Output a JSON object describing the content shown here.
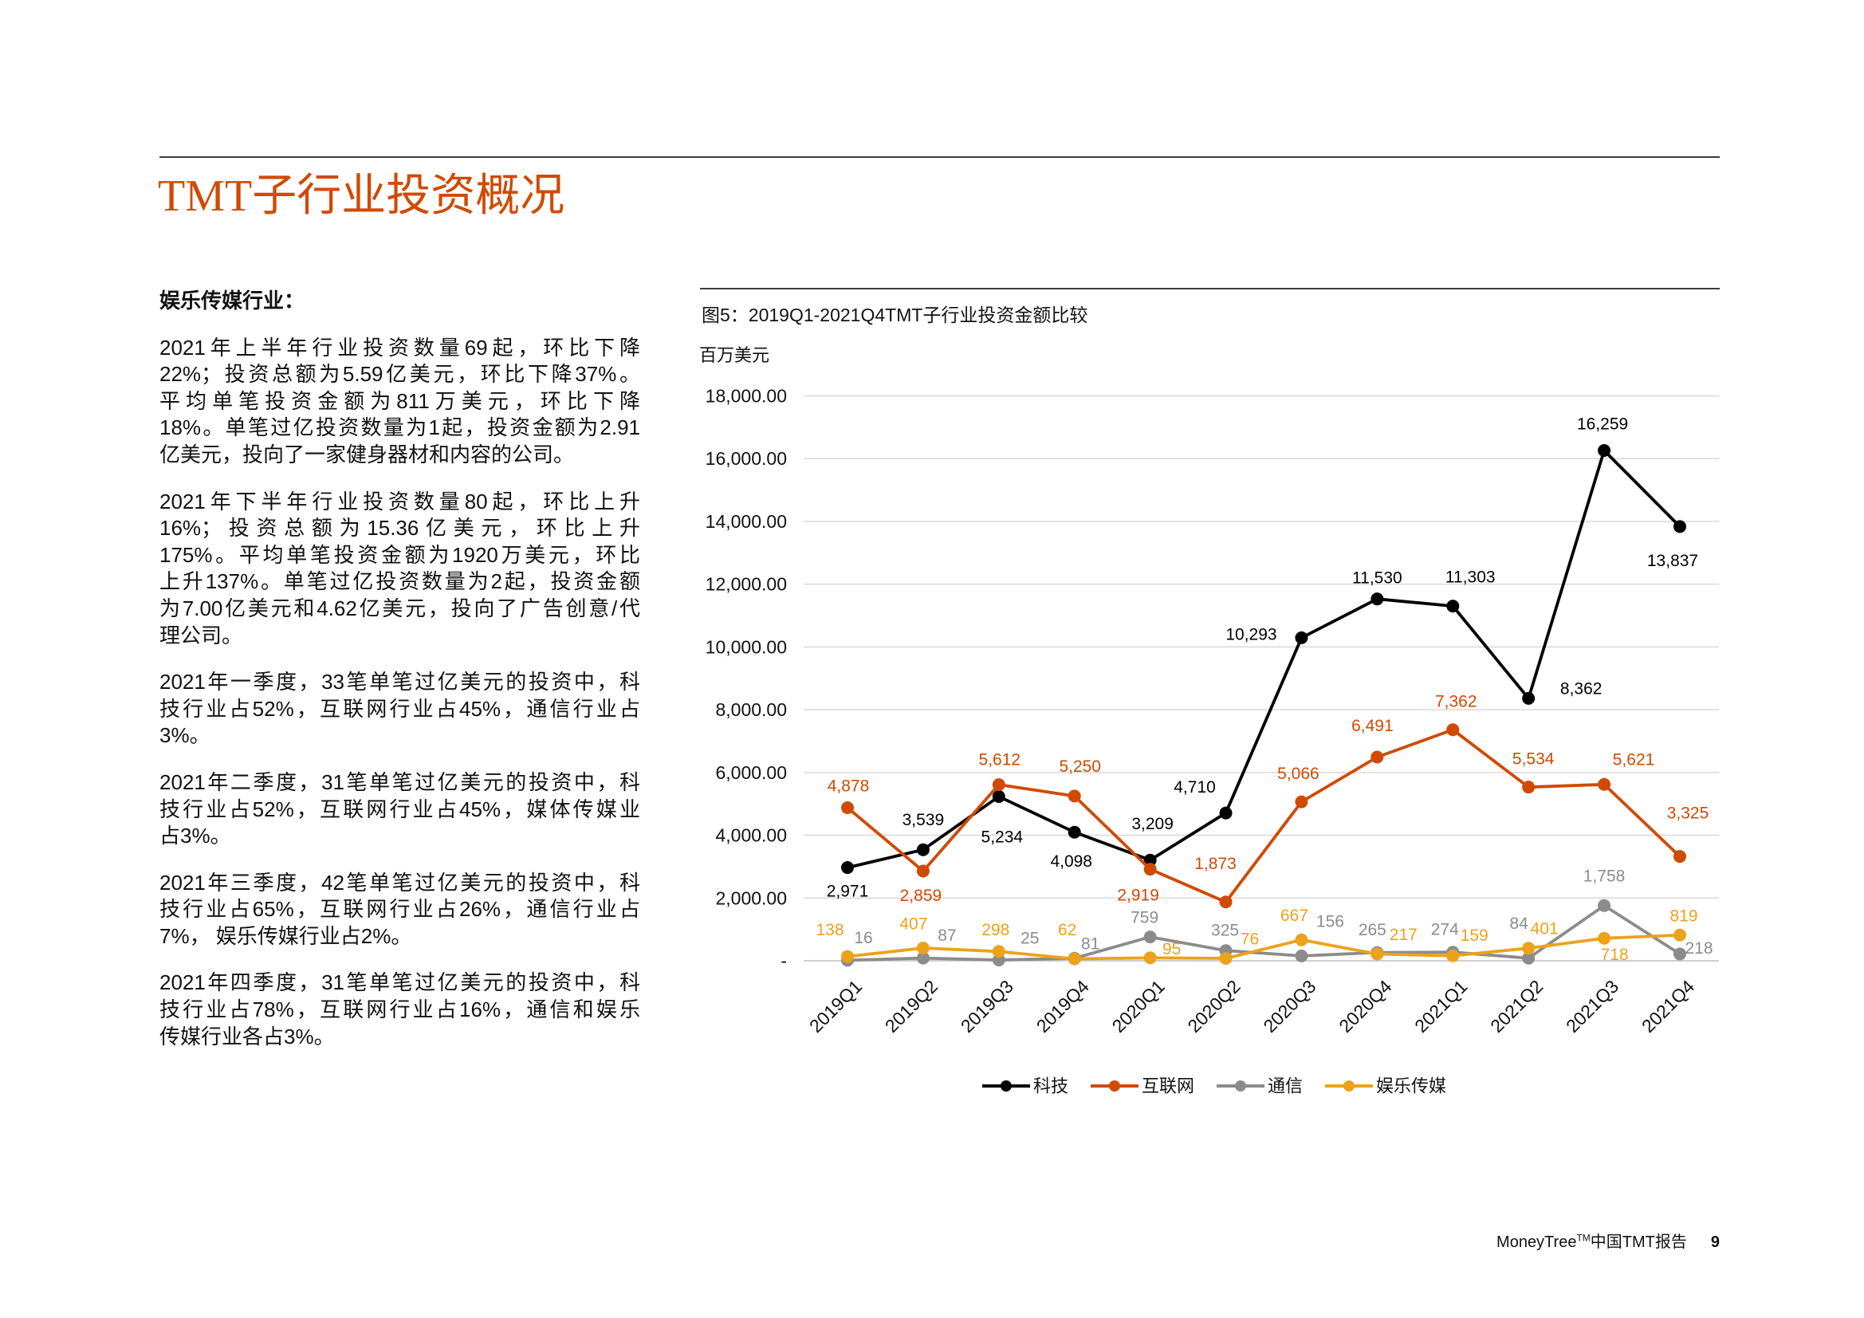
{
  "theme": {
    "accent": "#d04a02"
  },
  "header": {
    "title": "TMT子行业投资概况"
  },
  "body": {
    "heading": "娱乐传媒行业：",
    "paragraphs": [
      [
        "2021年上半年行业投资数量69起，环比下降",
        "22%；投资总额为5.59亿美元，环比下降37%。",
        "平均单笔投资金额为811万美元，环比下降",
        "18%。单笔过亿投资数量为1起，投资金额为2.91",
        "亿美元，投向了一家健身器材和内容的公司。"
      ],
      [
        "2021年下半年行业投资数量80起，环比上升",
        "16%；投资总额为15.36亿美元，环比上升",
        "175%。平均单笔投资金额为1920万美元，环比",
        "上升137%。单笔过亿投资数量为2起，投资金额",
        "为7.00亿美元和4.62亿美元，投向了广告创意/代",
        "理公司。"
      ],
      [
        "2021年一季度，33笔单笔过亿美元的投资中，科",
        "技行业占52%，互联网行业占45%，通信行业占",
        "3%。"
      ],
      [
        "2021年二季度，31笔单笔过亿美元的投资中，科",
        "技行业占52%，互联网行业占45%，媒体传媒业",
        "占3%。"
      ],
      [
        "2021年三季度，42笔单笔过亿美元的投资中，科",
        "技行业占65%，互联网行业占26%，通信行业占",
        "7%， 娱乐传媒行业占2%。"
      ],
      [
        "2021年四季度，31笔单笔过亿美元的投资中，科",
        "技行业占78%，互联网行业占16%，通信和娱乐",
        "传媒行业各占3%。"
      ]
    ]
  },
  "chart_data": {
    "type": "line",
    "title": "图5：2019Q1-2021Q4TMT子行业投资金额比较",
    "ylabel": "百万美元",
    "categories": [
      "2019Q1",
      "2019Q2",
      "2019Q3",
      "2019Q4",
      "2020Q1",
      "2020Q2",
      "2020Q3",
      "2020Q4",
      "2021Q1",
      "2021Q2",
      "2021Q3",
      "2021Q4"
    ],
    "ylim": [
      0,
      18000
    ],
    "yticks": [
      0,
      2000,
      4000,
      6000,
      8000,
      10000,
      12000,
      14000,
      16000,
      18000
    ],
    "ytick_labels": [
      "-",
      "2,000.00",
      "4,000.00",
      "6,000.00",
      "8,000.00",
      "10,000.00",
      "12,000.00",
      "14,000.00",
      "16,000.00",
      "18,000.00"
    ],
    "grid": true,
    "legend": "bottom",
    "series": [
      {
        "name": "科技",
        "color": "#000000",
        "values": [
          2971,
          3539,
          5234,
          4098,
          3209,
          4710,
          10293,
          11530,
          11303,
          8362,
          16259,
          13837
        ]
      },
      {
        "name": "互联网",
        "color": "#d04a02",
        "values": [
          4878,
          2859,
          5612,
          5250,
          2919,
          1873,
          5066,
          6491,
          7362,
          5534,
          5621,
          3325
        ]
      },
      {
        "name": "通信",
        "color": "#8c8c8c",
        "values": [
          16,
          87,
          25,
          81,
          759,
          325,
          156,
          265,
          274,
          84,
          1758,
          218
        ]
      },
      {
        "name": "娱乐传媒",
        "color": "#eca21a",
        "values": [
          138,
          407,
          298,
          62,
          95,
          76,
          667,
          217,
          159,
          401,
          718,
          819
        ]
      }
    ]
  },
  "footer": {
    "brand": "MoneyTree",
    "tm": "TM",
    "report": "中国TMT报告",
    "page_number": "9"
  }
}
